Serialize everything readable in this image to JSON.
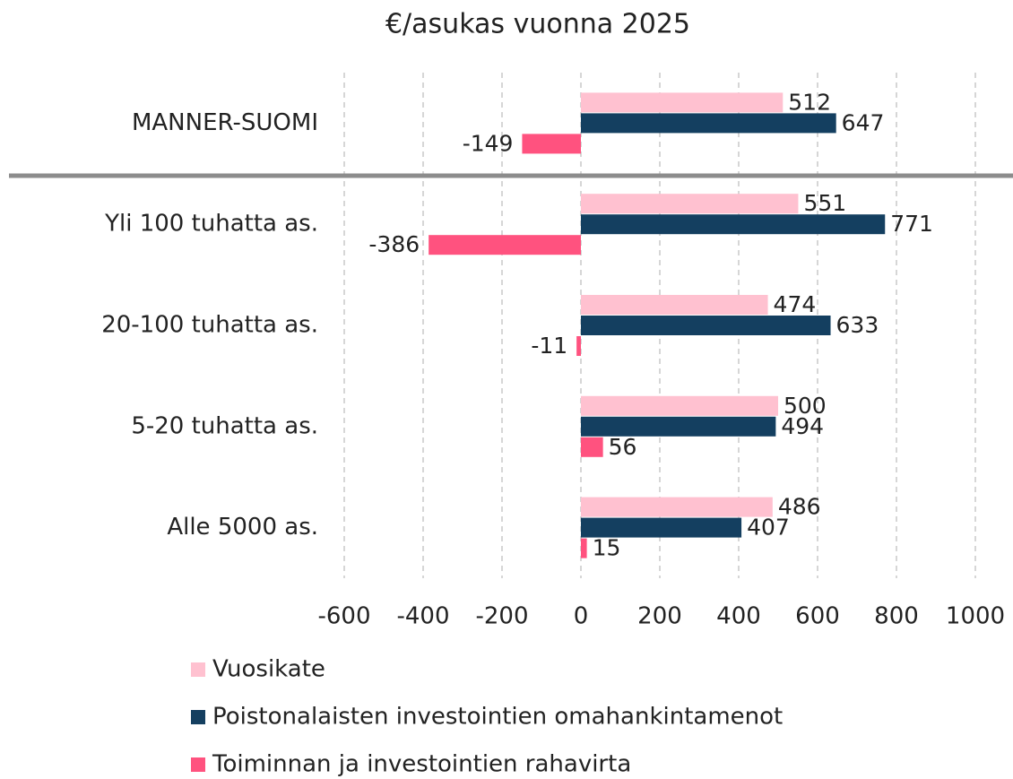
{
  "chart_data": {
    "type": "hbar",
    "title": "€/asukas vuonna 2025",
    "categories": [
      "MANNER-SUOMI",
      "Yli 100 tuhatta as.",
      "20-100 tuhatta as.",
      "5-20 tuhatta as.",
      "Alle 5000 as."
    ],
    "series": [
      {
        "name": "Vuosikate",
        "color": "#ffc1d0",
        "label_color": "#8e3a6e",
        "values": [
          512,
          551,
          474,
          500,
          486
        ]
      },
      {
        "name": "Poistonalaisten investointien omahankintamenot",
        "color": "#143f60",
        "label_color": "#2b4c6c",
        "values": [
          647,
          771,
          633,
          494,
          407
        ]
      },
      {
        "name": "Toiminnan ja investointien rahavirta",
        "color": "#ff527f",
        "label_color": "#7a1232",
        "values": [
          -149,
          -386,
          -11,
          56,
          15
        ]
      }
    ],
    "xlim": [
      -600,
      1000
    ],
    "xticks": [
      -600,
      -400,
      -200,
      0,
      200,
      400,
      600,
      800,
      1000
    ],
    "grid": true
  }
}
